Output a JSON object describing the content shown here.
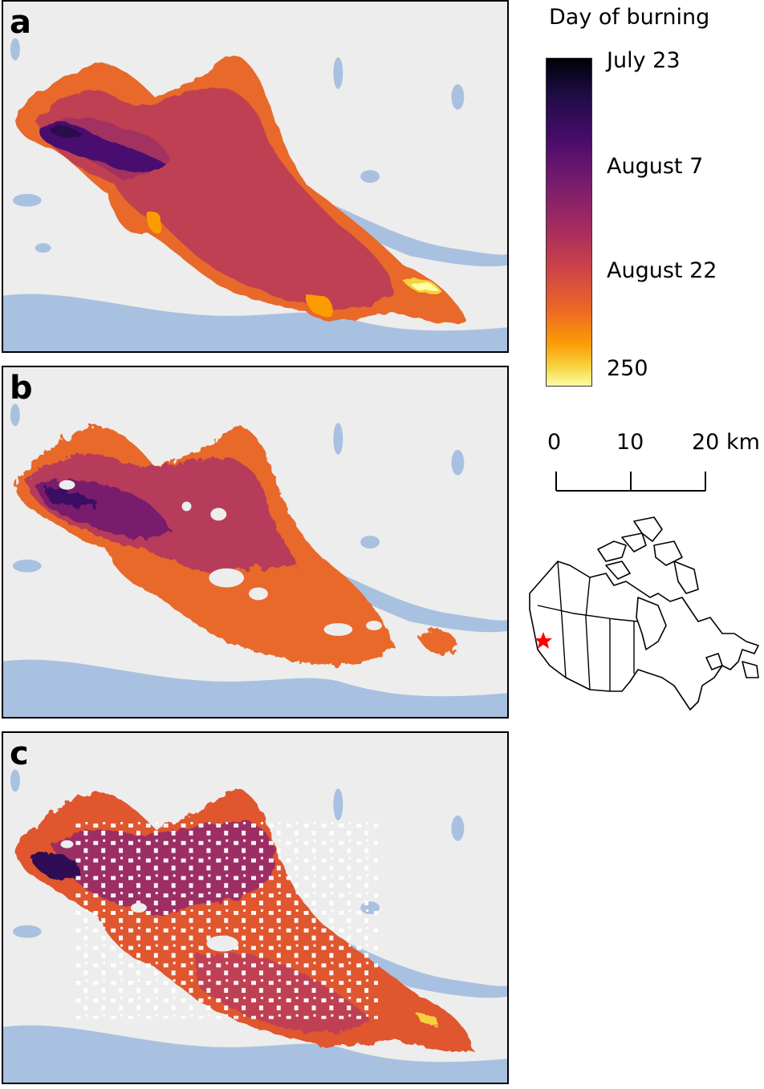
{
  "panels": [
    {
      "letter": "a"
    },
    {
      "letter": "b"
    },
    {
      "letter": "c"
    }
  ],
  "legend": {
    "title": "Day of burning",
    "ticks": [
      "July 23",
      "August 7",
      "August 22",
      "250"
    ]
  },
  "scale_bar": {
    "labels": [
      "0",
      "10",
      "20 km"
    ]
  },
  "colors": {
    "water": "#a9c1e0",
    "terrain": "#eeeeee",
    "fire_star": "#ff0000"
  }
}
